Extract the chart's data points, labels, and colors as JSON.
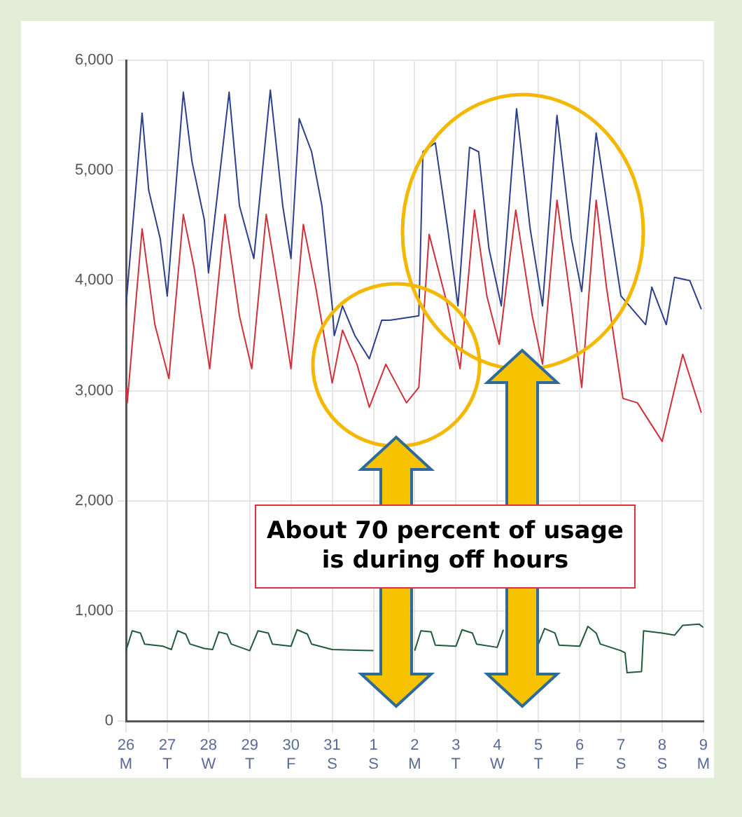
{
  "chart_data": {
    "type": "line",
    "xlim": [
      "--08-26",
      "--09-09"
    ],
    "xticks": [
      {
        "value": "--08-26",
        "label": "26\nM"
      },
      {
        "value": "--08-27",
        "label": "27\nT"
      },
      {
        "value": "--08-28",
        "label": "28\nW"
      },
      {
        "value": "--08-29",
        "label": "29\nT"
      },
      {
        "value": "--08-30",
        "label": "30\nF"
      },
      {
        "value": "--08-31",
        "label": "31\nS"
      },
      {
        "value": "--09-01",
        "label": "1\nS"
      },
      {
        "value": "--09-02",
        "label": "2\nM"
      },
      {
        "value": "--09-03",
        "label": "3\nT"
      },
      {
        "value": "--09-04",
        "label": "4\nW"
      },
      {
        "value": "--09-05",
        "label": "5\nT"
      },
      {
        "value": "--09-06",
        "label": "6\nF"
      },
      {
        "value": "--09-07",
        "label": "7\nS"
      },
      {
        "value": "--09-08",
        "label": "8\nS"
      },
      {
        "value": "--09-09",
        "label": "9\nM"
      }
    ],
    "ylim": [
      0,
      6000
    ],
    "yticks": [
      {
        "value": 0,
        "label": "0"
      },
      {
        "value": 1000,
        "label": "1,000"
      },
      {
        "value": 2000,
        "label": "2,000"
      },
      {
        "value": 3000,
        "label": "3,000"
      },
      {
        "value": 4000,
        "label": "4,000"
      },
      {
        "value": 5000,
        "label": "5,000"
      },
      {
        "value": 6000,
        "label": "6,000"
      }
    ],
    "grid": true,
    "series": [
      {
        "color": "#2b3f8c",
        "x": [
          "--08-26T00:00",
          "--08-26T09:22",
          "--08-26T13:12",
          "--08-26T19:55",
          "--08-27T00:00",
          "--08-27T09:22",
          "--08-27T14:24",
          "--08-27T21:36",
          "--08-28T00:00",
          "--08-28T12:00",
          "--08-28T18:00",
          "--08-29T02:24",
          "--08-29T12:00",
          "--08-29T19:12",
          "--08-30T00:00",
          "--08-30T04:48",
          "--08-30T12:00",
          "--08-30T18:00",
          "--08-31T00:00",
          "--08-31T01:12",
          "--08-31T06:00",
          "--08-31T13:12",
          "--08-31T21:36",
          "--09-01T04:48",
          "--09-01T09:36",
          "--09-02T02:24",
          "--09-02T04:48",
          "--09-02T12:00",
          "--09-02T19:12",
          "--09-03T01:12",
          "--09-03T07:55",
          "--09-03T13:12",
          "--09-03T19:12",
          "--09-04T02:24",
          "--09-04T11:17",
          "--09-04T19:12",
          "--09-05T02:24",
          "--09-05T10:48",
          "--09-05T19:12",
          "--09-06T01:12",
          "--09-06T09:36",
          "--09-06T16:48",
          "--09-07T00:00",
          "--09-07T07:12",
          "--09-07T14:24",
          "--09-07T18:00",
          "--09-08T02:24",
          "--09-08T07:12",
          "--09-08T16:05",
          "--09-08T22:48"
        ],
        "values": [
          3770,
          5520,
          4820,
          4380,
          3860,
          5710,
          5080,
          4550,
          4070,
          5710,
          4680,
          4200,
          5730,
          4680,
          4200,
          5470,
          5170,
          4680,
          3770,
          3500,
          3770,
          3500,
          3290,
          3640,
          3640,
          3680,
          5170,
          5250,
          4470,
          3770,
          5210,
          5170,
          4290,
          3770,
          5560,
          4470,
          3770,
          5500,
          4380,
          3900,
          5340,
          4600,
          3860,
          3730,
          3600,
          3940,
          3600,
          4030,
          4000,
          3740
        ]
      },
      {
        "color": "#d0303a",
        "x": [
          "--08-26T00:00",
          "--08-26T00:43",
          "--08-26T09:22",
          "--08-26T16:48",
          "--08-27T00:58",
          "--08-27T09:22",
          "--08-27T15:36",
          "--08-28T00:43",
          "--08-28T09:36",
          "--08-28T18:00",
          "--08-29T01:12",
          "--08-29T09:36",
          "--08-29T19:12",
          "--08-30T00:00",
          "--08-30T07:12",
          "--08-30T14:24",
          "--08-31T00:00",
          "--08-31T06:00",
          "--08-31T14:24",
          "--08-31T21:36",
          "--09-01T07:12",
          "--09-01T19:12",
          "--09-02T02:24",
          "--09-02T08:24",
          "--09-02T19:12",
          "--09-03T02:24",
          "--09-03T10:48",
          "--09-03T18:00",
          "--09-04T01:12",
          "--09-04T10:48",
          "--09-04T20:24",
          "--09-05T02:24",
          "--09-05T10:48",
          "--09-05T19:12",
          "--09-06T01:12",
          "--09-06T09:36",
          "--09-06T15:36",
          "--09-07T01:12",
          "--09-07T09:36",
          "--09-08T00:00",
          "--09-08T12:00",
          "--09-08T22:48"
        ],
        "values": [
          3020,
          2890,
          4470,
          3600,
          3110,
          4600,
          4120,
          3200,
          4600,
          3680,
          3200,
          4600,
          3680,
          3200,
          4510,
          3940,
          3070,
          3550,
          3240,
          2850,
          3240,
          2890,
          3030,
          4420,
          3770,
          3200,
          4640,
          3860,
          3420,
          4640,
          3680,
          3240,
          4730,
          3770,
          3030,
          4730,
          3940,
          2930,
          2890,
          2540,
          3330,
          2800
        ]
      },
      {
        "color": "#1f5a3a",
        "x": [
          "--08-26T00:00",
          "--08-26T03:36",
          "--08-26T08:24",
          "--08-26T10:48",
          "--08-26T21:36",
          "--08-27T02:24",
          "--08-27T06:00",
          "--08-27T10:48",
          "--08-27T13:12",
          "--08-27T21:36",
          "--08-28T02:24",
          "--08-28T06:00",
          "--08-28T10:48",
          "--08-28T13:12",
          "--08-29T00:00",
          "--08-29T04:48",
          "--08-29T10:48",
          "--08-29T13:12",
          "--08-30T00:00",
          "--08-30T03:36",
          "--08-30T09:36",
          "--08-30T12:00",
          "--08-31T00:00",
          "--09-01T00:00",
          "--09-01T16:48",
          "--09-02T00:00",
          "--09-02T03:36",
          "--09-02T09:36",
          "--09-02T12:00",
          "--09-03T00:00",
          "--09-03T03:36",
          "--09-03T09:36",
          "--09-03T12:00",
          "--09-04T00:00",
          "--09-04T03:36",
          "--09-04T10:48",
          "--09-04T12:00",
          "--09-05T00:00",
          "--09-05T03:36",
          "--09-05T09:36",
          "--09-05T12:00",
          "--09-06T00:00",
          "--09-06T04:48",
          "--09-06T09:36",
          "--09-06T12:00",
          "--09-07T00:00",
          "--09-07T02:24",
          "--09-07T03:36",
          "--09-07T12:00",
          "--09-07T13:12",
          "--09-08T00:00",
          "--09-08T07:12",
          "--09-08T12:00",
          "--09-08T21:36",
          "--09-09T00:00"
        ],
        "values": [
          640,
          820,
          800,
          700,
          680,
          650,
          820,
          790,
          700,
          660,
          650,
          810,
          790,
          700,
          640,
          820,
          800,
          700,
          680,
          830,
          790,
          700,
          650,
          640,
          null,
          640,
          820,
          810,
          690,
          680,
          830,
          800,
          700,
          670,
          830,
          null,
          null,
          700,
          840,
          800,
          690,
          680,
          860,
          800,
          700,
          640,
          620,
          440,
          450,
          820,
          800,
          780,
          870,
          880,
          850
        ]
      }
    ],
    "annotations": [
      "About 70 percent of usage is during off hours"
    ]
  }
}
